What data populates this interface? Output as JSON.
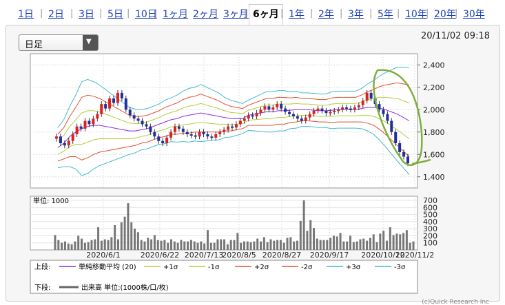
{
  "tabs": [
    {
      "label": "1日",
      "active": false
    },
    {
      "label": "2日",
      "active": false
    },
    {
      "label": "3日",
      "active": false
    },
    {
      "label": "5日",
      "active": false
    },
    {
      "label": "10日",
      "active": false
    },
    {
      "label": "1ヶ月",
      "active": false
    },
    {
      "label": "2ヶ月",
      "active": false
    },
    {
      "label": "3ヶ月",
      "active": false
    },
    {
      "label": "6ヶ月",
      "active": true
    },
    {
      "label": "1年",
      "active": false
    },
    {
      "label": "2年",
      "active": false
    },
    {
      "label": "3年",
      "active": false
    },
    {
      "label": "5年",
      "active": false
    },
    {
      "label": "10年",
      "active": false
    },
    {
      "label": "20年",
      "active": false
    },
    {
      "label": "30年",
      "active": false
    }
  ],
  "period_select": {
    "value": "日足"
  },
  "datetime": "20/11/02 09:18",
  "colors": {
    "up": "#e02020",
    "down": "#2030a0",
    "ma": "#8a2be2",
    "s1": "#b5cc3a",
    "s2": "#e05030",
    "s3": "#40b8d0",
    "volume": "#777777",
    "circle": "#7fae3f"
  },
  "chart_data": [
    {
      "type": "candlestick",
      "ylim": [
        1300,
        2500
      ],
      "yticks": [
        "2,400",
        "2,200",
        "2,000",
        "1,800",
        "1,600",
        "1,400"
      ],
      "ytick_values": [
        2400,
        2200,
        2000,
        1800,
        1600,
        1400
      ],
      "xticks": [
        "2020/6/1",
        "2020/6/22",
        "2020/7/13",
        "2020/8/5",
        "2020/8/27",
        "2020/9/17",
        "2020/10/12",
        "2020/11/2"
      ],
      "close": [
        1760,
        1700,
        1680,
        1720,
        1780,
        1850,
        1830,
        1900,
        1870,
        1920,
        1960,
        2050,
        2010,
        2100,
        2060,
        2150,
        2100,
        2000,
        1950,
        1920,
        1900,
        1870,
        1850,
        1800,
        1760,
        1720,
        1700,
        1750,
        1800,
        1850,
        1830,
        1800,
        1780,
        1770,
        1760,
        1800,
        1780,
        1760,
        1750,
        1780,
        1800,
        1820,
        1850,
        1840,
        1870,
        1900,
        1920,
        1950,
        1940,
        1970,
        2000,
        2030,
        2000,
        2020,
        2050,
        2010,
        1980,
        1960,
        1940,
        1920,
        1900,
        1930,
        1960,
        1990,
        2010,
        1990,
        1970,
        1980,
        1990,
        2000,
        2020,
        2010,
        2000,
        2020,
        2040,
        2080,
        2150,
        2100,
        2050,
        2000,
        1960,
        1900,
        1800,
        1700,
        1620,
        1580,
        1520
      ],
      "ma_start": 1720,
      "bands": {
        "ma": [
          1660,
          1700,
          1760,
          1800,
          1830,
          1850,
          1860,
          1860,
          1850,
          1840,
          1830,
          1820,
          1810,
          1810,
          1820,
          1830,
          1850,
          1870,
          1890,
          1910,
          1920,
          1940,
          1950,
          1960,
          1970,
          1960,
          1950,
          1940,
          1930,
          1920,
          1920,
          1920,
          1950,
          1960,
          1970,
          1980,
          1980,
          1990,
          1990,
          1995,
          2000,
          2000,
          2000,
          1995,
          1990,
          1990,
          1995,
          2000,
          2000,
          2000,
          2000,
          2010,
          2020,
          2020,
          2015,
          2000,
          1980,
          1960,
          1930,
          1900
        ],
        "sigma": [
          60,
          70,
          90,
          110,
          140,
          140,
          130,
          120,
          110,
          100,
          90,
          80,
          70,
          65,
          60,
          60,
          60,
          60,
          65,
          65,
          70,
          75,
          80,
          80,
          85,
          80,
          75,
          70,
          60,
          55,
          50,
          45,
          45,
          50,
          55,
          60,
          60,
          60,
          60,
          55,
          55,
          50,
          50,
          50,
          50,
          50,
          55,
          55,
          55,
          55,
          55,
          60,
          70,
          80,
          95,
          110,
          125,
          140,
          150,
          160
        ]
      },
      "volume": {
        "ylim": [
          0,
          700
        ],
        "yticks": [
          "700",
          "600",
          "500",
          "400",
          "300",
          "200",
          "100"
        ],
        "ytick_values": [
          700,
          600,
          500,
          400,
          300,
          200,
          100
        ],
        "values": [
          210,
          140,
          100,
          120,
          90,
          80,
          120,
          200,
          160,
          100,
          110,
          140,
          150,
          320,
          130,
          150,
          140,
          180,
          350,
          150,
          390,
          470,
          660,
          390,
          300,
          250,
          140,
          120,
          170,
          150,
          210,
          140,
          130,
          140,
          100,
          150,
          120,
          100,
          140,
          120,
          120,
          140,
          120,
          100,
          120,
          90,
          280,
          100,
          100,
          150,
          150,
          150,
          80,
          140,
          140,
          240,
          100,
          120,
          120,
          110,
          120,
          160,
          120,
          180,
          110,
          150,
          130,
          140,
          140,
          100,
          170,
          180,
          120,
          130,
          410,
          700,
          270,
          420,
          310,
          160,
          140,
          140,
          140,
          170,
          200,
          190,
          240,
          120,
          120,
          200,
          110,
          120,
          150,
          160,
          130,
          170,
          220,
          110,
          230,
          270,
          130,
          320,
          210,
          230,
          220,
          240,
          280,
          100,
          120
        ]
      },
      "legend": {
        "upper_label": "上段:",
        "lower_label": "下段:",
        "items": [
          "単純移動平均 (20)",
          "+1σ",
          "-1σ",
          "+2σ",
          "-2σ",
          "+3σ",
          "-3σ"
        ],
        "lower_item": "出来高 単位:(1000株/口/枚)"
      },
      "unit_label": "単位: 1000",
      "footer_text": "(c)Quick Research Inc"
    }
  ]
}
